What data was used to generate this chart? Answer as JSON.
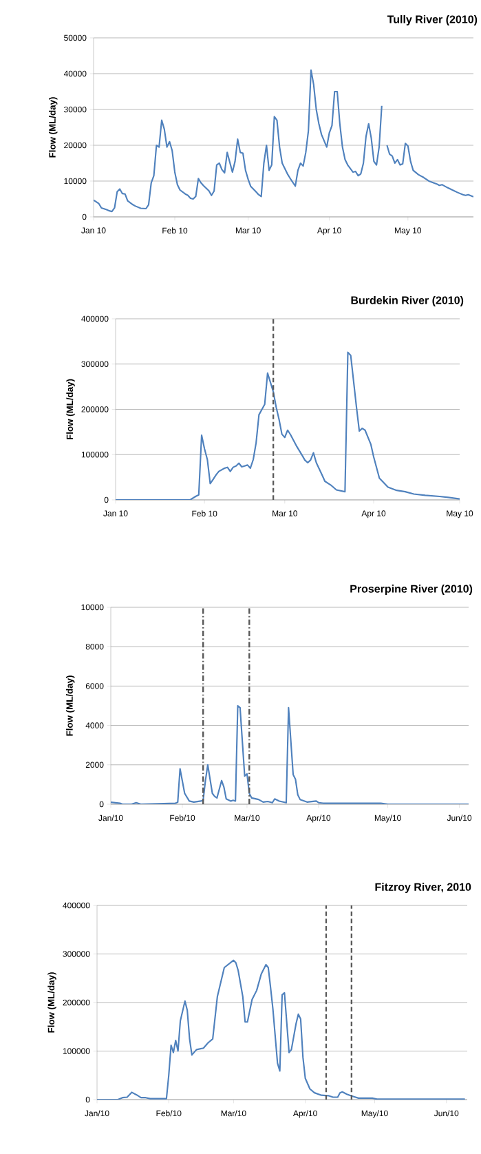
{
  "chart_data": [
    {
      "type": "line",
      "title": "Tully River (2010)",
      "ylabel": "Flow (ML/day)",
      "color": "#4f81bd",
      "grid": "y",
      "xlim": [
        "2010-01-01",
        "2010-05-26"
      ],
      "ylim": [
        0,
        50000
      ],
      "yticks": [
        0,
        10000,
        20000,
        30000,
        40000,
        50000
      ],
      "xticks": [
        {
          "value": "2010-01-01",
          "label": "Jan 10"
        },
        {
          "value": "2010-02-01",
          "label": "Feb 10"
        },
        {
          "value": "2010-03-01",
          "label": "Mar 10"
        },
        {
          "value": "2010-04-01",
          "label": "Apr 10"
        },
        {
          "value": "2010-05-01",
          "label": "May 10"
        }
      ],
      "x": [
        "2010-01-01",
        "2010-01-03",
        "2010-01-04",
        "2010-01-06",
        "2010-01-07",
        "2010-01-08",
        "2010-01-09",
        "2010-01-10",
        "2010-01-11",
        "2010-01-12",
        "2010-01-13",
        "2010-01-14",
        "2010-01-16",
        "2010-01-17",
        "2010-01-19",
        "2010-01-21",
        "2010-01-22",
        "2010-01-23",
        "2010-01-24",
        "2010-01-25",
        "2010-01-26",
        "2010-01-27",
        "2010-01-28",
        "2010-01-29",
        "2010-01-30",
        "2010-01-31",
        "2010-02-01",
        "2010-02-02",
        "2010-02-03",
        "2010-02-05",
        "2010-02-06",
        "2010-02-07",
        "2010-02-08",
        "2010-02-09",
        "2010-02-10",
        "2010-02-11",
        "2010-02-12",
        "2010-02-14",
        "2010-02-15",
        "2010-02-16",
        "2010-02-17",
        "2010-02-18",
        "2010-02-19",
        "2010-02-20",
        "2010-02-21",
        "2010-02-23",
        "2010-02-24",
        "2010-02-25",
        "2010-02-26",
        "2010-02-27",
        "2010-02-28",
        "2010-03-01",
        "2010-03-02",
        "2010-03-04",
        "2010-03-05",
        "2010-03-06",
        "2010-03-07",
        "2010-03-08",
        "2010-03-09",
        "2010-03-10",
        "2010-03-11",
        "2010-03-12",
        "2010-03-13",
        "2010-03-14",
        "2010-03-16",
        "2010-03-17",
        "2010-03-19",
        "2010-03-20",
        "2010-03-21",
        "2010-03-22",
        "2010-03-23",
        "2010-03-24",
        "2010-03-25",
        "2010-03-26",
        "2010-03-27",
        "2010-03-28",
        "2010-03-29",
        "2010-03-31",
        "2010-04-01",
        "2010-04-02",
        "2010-04-03",
        "2010-04-04",
        "2010-04-05",
        "2010-04-06",
        "2010-04-07",
        "2010-04-08",
        "2010-04-10",
        "2010-04-11",
        "2010-04-12",
        "2010-04-13",
        "2010-04-14",
        "2010-04-15",
        "2010-04-16",
        "2010-04-17",
        "2010-04-18",
        "2010-04-19",
        "2010-04-20",
        "2010-04-21",
        "2010-04-22",
        "2010-04-23",
        "2010-04-24",
        "2010-04-25",
        "2010-04-26",
        "2010-04-27",
        "2010-04-28",
        "2010-04-29",
        "2010-04-30",
        "2010-05-01",
        "2010-05-02",
        "2010-05-03",
        "2010-05-05",
        "2010-05-07",
        "2010-05-09",
        "2010-05-12",
        "2010-05-13",
        "2010-05-14",
        "2010-05-16",
        "2010-05-18",
        "2010-05-20",
        "2010-05-22",
        "2010-05-23",
        "2010-05-24",
        "2010-05-25",
        "2010-05-26"
      ],
      "values": [
        4700,
        3700,
        2500,
        2000,
        1700,
        1500,
        2500,
        7000,
        7800,
        6500,
        6400,
        4500,
        3400,
        3000,
        2400,
        2300,
        3400,
        9500,
        11500,
        20000,
        19500,
        27000,
        24500,
        19500,
        21000,
        18500,
        12500,
        9000,
        7500,
        6400,
        6000,
        5200,
        5000,
        5700,
        10700,
        9500,
        8700,
        7300,
        6000,
        7200,
        14500,
        15000,
        13200,
        12300,
        18000,
        12500,
        15500,
        21700,
        18000,
        17800,
        13000,
        10500,
        8500,
        7000,
        6200,
        5700,
        15000,
        20000,
        13000,
        14500,
        28000,
        27000,
        19500,
        15000,
        12000,
        10800,
        8600,
        13000,
        15000,
        14200,
        18000,
        24000,
        41000,
        37000,
        30000,
        26000,
        23000,
        19500,
        23500,
        25500,
        35000,
        35000,
        26000,
        19500,
        16000,
        14500,
        12500,
        12700,
        11500,
        12000,
        15000,
        22500,
        26000,
        22000,
        15500,
        14500,
        19500,
        31000,
        null,
        20000,
        17500,
        17000,
        15000,
        16000,
        14500,
        14800,
        20500,
        19800,
        15500,
        13000,
        11800,
        11000,
        10000,
        9200,
        8800,
        9000,
        8200,
        7500,
        6800,
        6200,
        6000,
        6200,
        5900,
        5600
      ]
    },
    {
      "type": "line",
      "title": "Burdekin River (2010)",
      "ylabel": "Flow (ML/day)",
      "color": "#4f81bd",
      "grid": "y",
      "xlim": [
        "2010-01-01",
        "2010-05-01"
      ],
      "ylim": [
        0,
        400000
      ],
      "yticks": [
        0,
        100000,
        200000,
        300000,
        400000
      ],
      "xticks": [
        {
          "value": "2010-01-01",
          "label": "Jan 10"
        },
        {
          "value": "2010-02-01",
          "label": "Feb 10"
        },
        {
          "value": "2010-03-01",
          "label": "Mar 10"
        },
        {
          "value": "2010-04-01",
          "label": "Apr 10"
        },
        {
          "value": "2010-05-01",
          "label": "May 10"
        }
      ],
      "ref_lines": [
        {
          "axis": "x",
          "value": "2010-02-25",
          "color": "#595959",
          "line_style": "dashed"
        }
      ],
      "x": [
        "2010-01-01",
        "2010-01-27",
        "2010-01-29",
        "2010-01-30",
        "2010-01-31",
        "2010-02-01",
        "2010-02-02",
        "2010-02-03",
        "2010-02-04",
        "2010-02-05",
        "2010-02-06",
        "2010-02-08",
        "2010-02-09",
        "2010-02-10",
        "2010-02-11",
        "2010-02-12",
        "2010-02-13",
        "2010-02-14",
        "2010-02-15",
        "2010-02-16",
        "2010-02-17",
        "2010-02-18",
        "2010-02-19",
        "2010-02-20",
        "2010-02-22",
        "2010-02-23",
        "2010-02-25",
        "2010-02-26",
        "2010-02-27",
        "2010-02-28",
        "2010-03-01",
        "2010-03-02",
        "2010-03-03",
        "2010-03-05",
        "2010-03-07",
        "2010-03-08",
        "2010-03-09",
        "2010-03-10",
        "2010-03-11",
        "2010-03-12",
        "2010-03-14",
        "2010-03-15",
        "2010-03-17",
        "2010-03-19",
        "2010-03-22",
        "2010-03-23",
        "2010-03-24",
        "2010-03-26",
        "2010-03-27",
        "2010-03-28",
        "2010-03-29",
        "2010-03-31",
        "2010-04-01",
        "2010-04-03",
        "2010-04-06",
        "2010-04-09",
        "2010-04-12",
        "2010-04-15",
        "2010-04-19",
        "2010-04-24",
        "2010-04-27",
        "2010-05-01"
      ],
      "values": [
        0,
        0,
        8000,
        11000,
        143000,
        113000,
        89000,
        36000,
        45000,
        55000,
        63000,
        70000,
        72000,
        63000,
        72000,
        75000,
        81000,
        73000,
        75000,
        77000,
        70000,
        89000,
        126000,
        188000,
        211000,
        280000,
        239000,
        205000,
        178000,
        145000,
        138000,
        154000,
        144000,
        120000,
        99000,
        88000,
        82000,
        88000,
        104000,
        82000,
        55000,
        41000,
        33000,
        22000,
        18000,
        326000,
        319000,
        205000,
        152000,
        158000,
        154000,
        123000,
        95000,
        48000,
        28000,
        21000,
        18000,
        13000,
        10000,
        7500,
        5500,
        2000
      ]
    },
    {
      "type": "line",
      "title": "Proserpine River (2010)",
      "ylabel": "Flow (ML/day)",
      "color": "#4f81bd",
      "grid": "y",
      "xlim": [
        "2010-01-01",
        "2010-06-05"
      ],
      "ylim": [
        0,
        10000
      ],
      "yticks": [
        0,
        2000,
        4000,
        6000,
        8000,
        10000
      ],
      "xticks": [
        {
          "value": "2010-01-01",
          "label": "Jan/10"
        },
        {
          "value": "2010-02-01",
          "label": "Feb/10"
        },
        {
          "value": "2010-03-01",
          "label": "Mar/10"
        },
        {
          "value": "2010-04-01",
          "label": "Apr/10"
        },
        {
          "value": "2010-05-01",
          "label": "May/10"
        },
        {
          "value": "2010-06-01",
          "label": "Jun/10"
        }
      ],
      "ref_lines": [
        {
          "axis": "x",
          "value": "2010-02-10",
          "color": "#595959",
          "line_style": "dashdot"
        },
        {
          "axis": "x",
          "value": "2010-03-02",
          "color": "#595959",
          "line_style": "dashdot"
        }
      ],
      "x": [
        "2010-01-01",
        "2010-01-05",
        "2010-01-06",
        "2010-01-10",
        "2010-01-12",
        "2010-01-14",
        "2010-01-29",
        "2010-01-30",
        "2010-01-31",
        "2010-02-02",
        "2010-02-04",
        "2010-02-06",
        "2010-02-09",
        "2010-02-10",
        "2010-02-11",
        "2010-02-12",
        "2010-02-14",
        "2010-02-15",
        "2010-02-16",
        "2010-02-18",
        "2010-02-19",
        "2010-02-20",
        "2010-02-22",
        "2010-02-23",
        "2010-02-24",
        "2010-02-25",
        "2010-02-26",
        "2010-02-28",
        "2010-03-01",
        "2010-03-02",
        "2010-03-03",
        "2010-03-06",
        "2010-03-08",
        "2010-03-10",
        "2010-03-12",
        "2010-03-13",
        "2010-03-15",
        "2010-03-18",
        "2010-03-19",
        "2010-03-21",
        "2010-03-22",
        "2010-03-23",
        "2010-03-24",
        "2010-03-27",
        "2010-03-31",
        "2010-04-01",
        "2010-04-03",
        "2010-04-28",
        "2010-05-01",
        "2010-06-05"
      ],
      "values": [
        100,
        50,
        0,
        0,
        80,
        0,
        50,
        100,
        1800,
        550,
        160,
        110,
        160,
        200,
        1200,
        2000,
        550,
        400,
        320,
        1200,
        870,
        270,
        160,
        200,
        160,
        5000,
        4900,
        1430,
        1540,
        550,
        320,
        240,
        110,
        140,
        80,
        270,
        160,
        80,
        4900,
        1500,
        1270,
        480,
        240,
        110,
        160,
        80,
        50,
        50,
        0,
        0
      ]
    },
    {
      "type": "line",
      "title": "Fitzroy River, 2010",
      "ylabel": "Flow (ML/day)",
      "color": "#4f81bd",
      "grid": "y",
      "xlim": [
        "2010-01-01",
        "2010-06-10"
      ],
      "ylim": [
        0,
        400000
      ],
      "yticks": [
        0,
        100000,
        200000,
        300000,
        400000
      ],
      "xticks": [
        {
          "value": "2010-01-01",
          "label": "Jan/10"
        },
        {
          "value": "2010-02-01",
          "label": "Feb/10"
        },
        {
          "value": "2010-03-01",
          "label": "Mar/10"
        },
        {
          "value": "2010-04-01",
          "label": "Apr/10"
        },
        {
          "value": "2010-05-01",
          "label": "May/10"
        },
        {
          "value": "2010-06-01",
          "label": "Jun/10"
        }
      ],
      "ref_lines": [
        {
          "axis": "x",
          "value": "2010-04-10",
          "color": "#595959",
          "line_style": "dashed"
        },
        {
          "axis": "x",
          "value": "2010-04-21",
          "color": "#595959",
          "line_style": "dashed"
        }
      ],
      "x": [
        "2010-01-01",
        "2010-01-10",
        "2010-01-12",
        "2010-01-14",
        "2010-01-16",
        "2010-01-18",
        "2010-01-20",
        "2010-01-22",
        "2010-01-24",
        "2010-01-31",
        "2010-02-01",
        "2010-02-02",
        "2010-02-03",
        "2010-02-04",
        "2010-02-05",
        "2010-02-06",
        "2010-02-08",
        "2010-02-09",
        "2010-02-10",
        "2010-02-11",
        "2010-02-13",
        "2010-02-16",
        "2010-02-18",
        "2010-02-20",
        "2010-02-22",
        "2010-02-25",
        "2010-03-01",
        "2010-03-02",
        "2010-03-03",
        "2010-03-05",
        "2010-03-06",
        "2010-03-07",
        "2010-03-09",
        "2010-03-11",
        "2010-03-13",
        "2010-03-15",
        "2010-03-16",
        "2010-03-17",
        "2010-03-18",
        "2010-03-20",
        "2010-03-21",
        "2010-03-22",
        "2010-03-23",
        "2010-03-25",
        "2010-03-26",
        "2010-03-28",
        "2010-03-29",
        "2010-03-30",
        "2010-03-31",
        "2010-04-01",
        "2010-04-03",
        "2010-04-05",
        "2010-04-08",
        "2010-04-11",
        "2010-04-13",
        "2010-04-15",
        "2010-04-16",
        "2010-04-17",
        "2010-04-19",
        "2010-04-22",
        "2010-04-24",
        "2010-04-30",
        "2010-05-02",
        "2010-06-09"
      ],
      "values": [
        0,
        0,
        4000,
        5000,
        15000,
        10000,
        4000,
        4000,
        2000,
        2000,
        50000,
        112000,
        97000,
        122000,
        100000,
        162000,
        203000,
        184000,
        125000,
        92000,
        103000,
        106000,
        117000,
        125000,
        212000,
        272000,
        287000,
        282000,
        266000,
        212000,
        160000,
        160000,
        206000,
        225000,
        259000,
        278000,
        272000,
        231000,
        187000,
        75000,
        59000,
        216000,
        220000,
        97000,
        103000,
        156000,
        176000,
        166000,
        87000,
        44000,
        22000,
        14000,
        9000,
        8000,
        5000,
        5000,
        14000,
        16000,
        11000,
        6000,
        3000,
        3000,
        1000,
        1000
      ]
    }
  ]
}
